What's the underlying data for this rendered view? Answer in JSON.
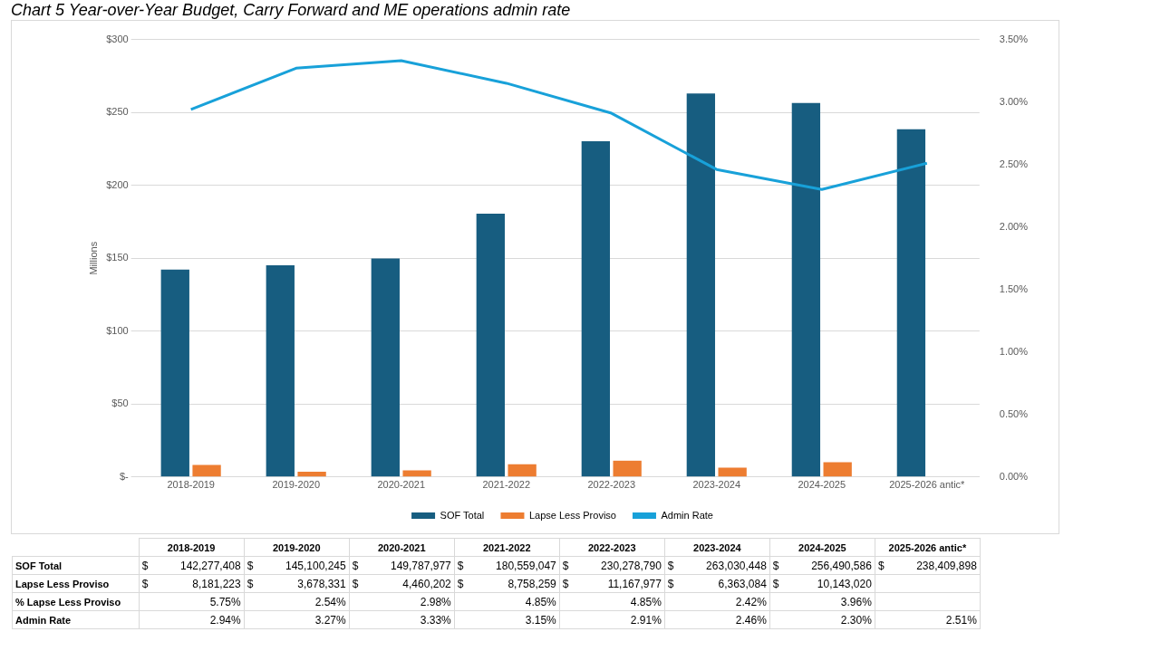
{
  "chart_data": {
    "type": "bar",
    "title": "Chart 5 Year-over-Year Budget, Carry Forward and ME operations admin rate",
    "ylabel": "Millions",
    "categories": [
      "2018-2019",
      "2019-2020",
      "2020-2021",
      "2021-2022",
      "2022-2023",
      "2023-2024",
      "2024-2025",
      "2025-2026 antic*"
    ],
    "series": [
      {
        "name": "SOF Total",
        "color": "#175d80",
        "values": [
          142.277408,
          145.100245,
          149.787977,
          180.559047,
          230.27879,
          263.030448,
          256.490586,
          238.409898
        ]
      },
      {
        "name": "Lapse Less Proviso",
        "color": "#ed7d31",
        "values": [
          8.181223,
          3.678331,
          4.460202,
          8.758259,
          11.167977,
          6.363084,
          10.14302,
          null
        ]
      },
      {
        "name": "Admin Rate",
        "type": "line",
        "axis": "y2",
        "color": "#18a1d9",
        "values": [
          2.94,
          3.27,
          3.33,
          3.15,
          2.91,
          2.46,
          2.3,
          2.51
        ],
        "value_labels": [
          "2.94%",
          "3.27%",
          "3.33%",
          "3.15%",
          "2.91%",
          "2.46%",
          "2.30%",
          "2.51%"
        ]
      }
    ],
    "annotations": [
      "SOF Total",
      "$ 142,277,408",
      "$ 145,100,245",
      "$ 149,787,977",
      "$ 180,559,047",
      "$ 230,278,790",
      "$ 263,030,448",
      "$ 256,490,586",
      "$ 238,409,898",
      "Lapse Less Proviso",
      "$ 8,181,223",
      "$ 3,678,331",
      "$ 4,460,202",
      "$ 8,758,259",
      "$ 11,167,977",
      "$ 6,363,084",
      "$ 10,143,020",
      null,
      "% Lapse Less Proviso",
      "5.75%",
      "2.54%",
      "2.98%",
      "4.85%",
      "4.85%",
      "2.42%",
      "3.96%",
      null
    ],
    "ylim": [
      0,
      300
    ],
    "yticks": [
      {
        "value": 0,
        "label": "$-"
      },
      {
        "value": 50,
        "label": "$50"
      },
      {
        "value": 100,
        "label": "$100"
      },
      {
        "value": 150,
        "label": "$150"
      },
      {
        "value": 200,
        "label": "$200"
      },
      {
        "value": 250,
        "label": "$250"
      },
      {
        "value": 300,
        "label": "$300"
      }
    ],
    "y2lim": [
      0,
      3.5
    ],
    "y2ticks": [
      {
        "value": 0,
        "label": "0.00%"
      },
      {
        "value": 0.5,
        "label": "0.50%"
      },
      {
        "value": 1,
        "label": "1.00%"
      },
      {
        "value": 1.5,
        "label": "1.50%"
      },
      {
        "value": 2,
        "label": "2.00%"
      },
      {
        "value": 2.5,
        "label": "2.50%"
      },
      {
        "value": 3,
        "label": "3.00%"
      },
      {
        "value": 3.5,
        "label": "3.50%"
      }
    ],
    "grid": "y",
    "legend": "bottom",
    "marker": "none",
    "line_style": "solid"
  }
}
